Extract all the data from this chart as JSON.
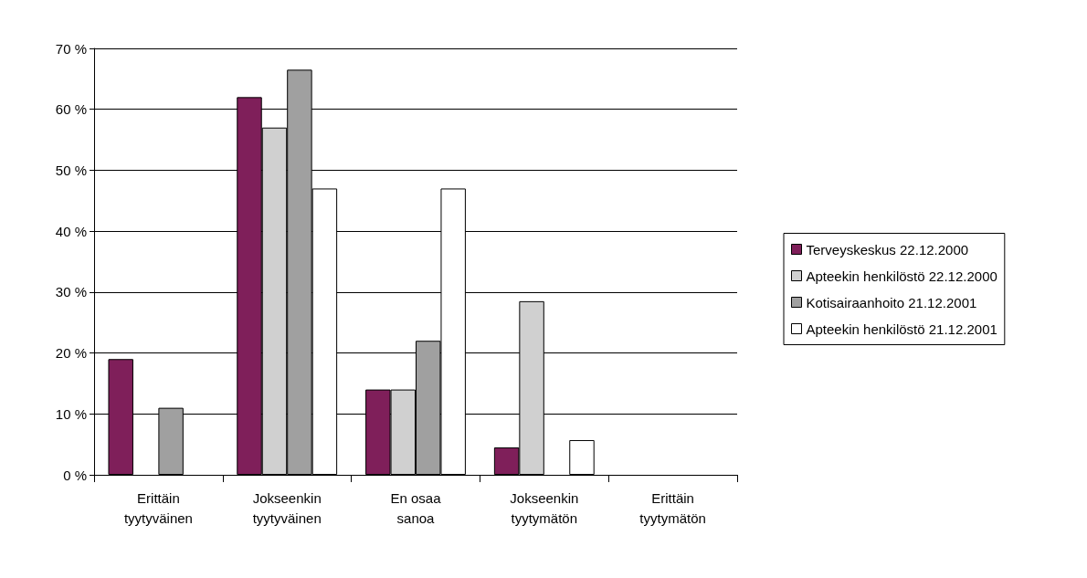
{
  "chart_data": {
    "type": "bar",
    "categories": [
      "Erittäin\ntyytyväinen",
      "Jokseenkin\ntyytyväinen",
      "En osaa\nsanoa",
      "Jokseenkin\ntyytymätön",
      "Erittäin\ntyytymätön"
    ],
    "series": [
      {
        "name": "Terveyskeskus 22.12.2000",
        "color": "#7f1f5a",
        "values": [
          19,
          62,
          14,
          4.5,
          0
        ]
      },
      {
        "name": "Apteekin henkilöstö 22.12.2000",
        "color": "#d0d0d0",
        "values": [
          0,
          57,
          14,
          28.5,
          0
        ]
      },
      {
        "name": "Kotisairaanhoito 21.12.2001",
        "color": "#a0a0a0",
        "values": [
          11,
          66.5,
          22,
          0,
          0
        ]
      },
      {
        "name": "Apteekin henkilöstö 21.12.2001",
        "color": "#ffffff",
        "values": [
          0,
          47,
          47,
          5.7,
          0
        ]
      }
    ],
    "ylim": [
      0,
      70
    ],
    "yticks": [
      {
        "value": 0,
        "label": "0 %"
      },
      {
        "value": 10,
        "label": "10 %"
      },
      {
        "value": 20,
        "label": "20 %"
      },
      {
        "value": 30,
        "label": "30 %"
      },
      {
        "value": 40,
        "label": "40 %"
      },
      {
        "value": 50,
        "label": "50 %"
      },
      {
        "value": 60,
        "label": "60 %"
      },
      {
        "value": 70,
        "label": "70 %"
      }
    ],
    "grid": "y",
    "legend": "right"
  }
}
